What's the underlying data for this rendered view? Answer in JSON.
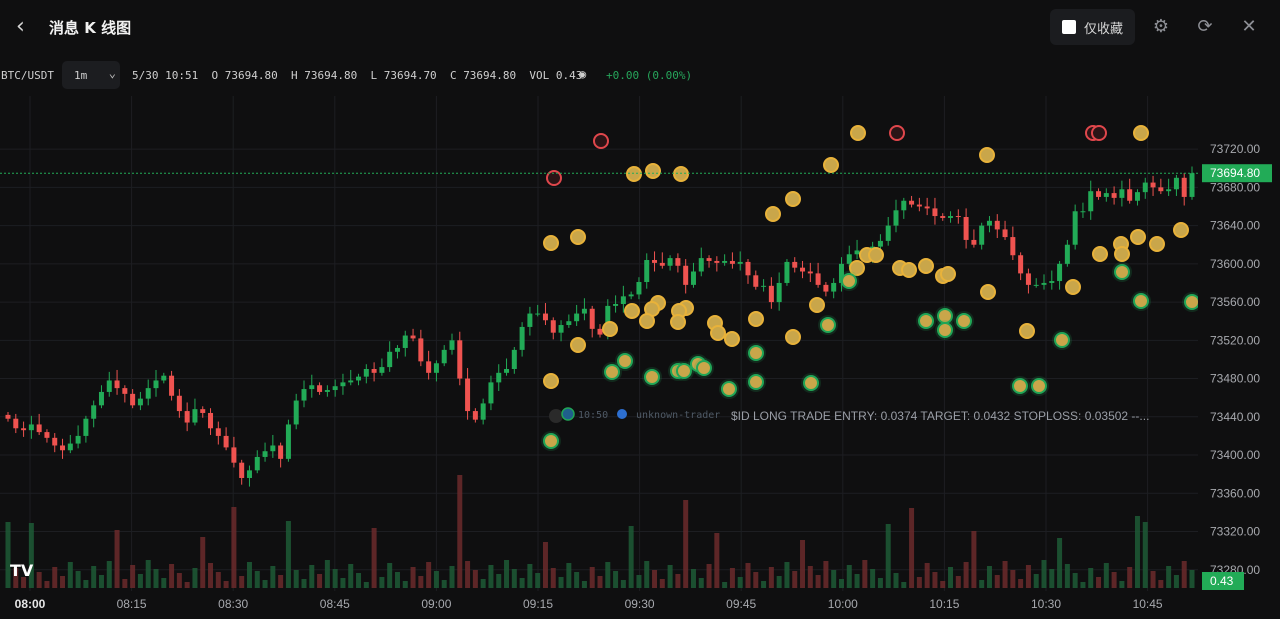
{
  "header": {
    "back_icon": "chevron-left-icon",
    "title": "消息 K 线图",
    "favorites_label": "仅收藏",
    "icons": [
      "gear-icon",
      "refresh-icon",
      "close-icon"
    ]
  },
  "toolbar": {
    "symbol": "BTC/USDT",
    "timeframe": "1m",
    "date_time": "5/30 10:51",
    "open_label": "O",
    "open": "73694.80",
    "high_label": "H",
    "high": "73694.80",
    "low_label": "L",
    "low": "73694.70",
    "close_label": "C",
    "close": "73694.80",
    "vol_label": "VOL",
    "vol": "0.43",
    "change": "+0.00 (0.00%)"
  },
  "annotation": {
    "time": "10:50",
    "user": "unknown-trader",
    "text": "$ID LONG TRADE ENTRY: 0.0374 TARGET: 0.0432 STOPLOSS: 0.03502 --..."
  },
  "logo": "TV",
  "colors": {
    "up": "#22ab57",
    "down": "#ef5350",
    "bg": "#0f0f10",
    "grid": "#1d1e22",
    "marker_gold": "#e8b23a",
    "marker_green": "#21a556",
    "marker_red": "#e0474c"
  },
  "chart_data": {
    "type": "candlestick",
    "symbol": "BTC/USDT",
    "interval": "1m",
    "ylim": [
      73240,
      73740
    ],
    "y_ticks": [
      73720,
      73680,
      73640,
      73600,
      73560,
      73520,
      73480,
      73440,
      73400,
      73360,
      73320,
      73280
    ],
    "y_tick_labels": [
      "73720.00",
      "73680.00",
      "73640.00",
      "73600.00",
      "73560.00",
      "73520.00",
      "73480.00",
      "73440.00",
      "73400.00",
      "73360.00",
      "73320.00",
      "73280.00"
    ],
    "x_ticks": [
      "08:00",
      "08:15",
      "08:30",
      "08:45",
      "09:00",
      "09:15",
      "09:30",
      "09:45",
      "10:00",
      "10:15",
      "10:30",
      "10:45"
    ],
    "last_price_label": "73694.80",
    "last_volume_label": "0.43",
    "grid": true,
    "candles_closes": [
      73438,
      73428,
      73426,
      73432,
      73424,
      73418,
      73410,
      73405,
      73412,
      73420,
      73438,
      73452,
      73466,
      73478,
      73470,
      73464,
      73452,
      73459,
      73470,
      73478,
      73483,
      73462,
      73446,
      73434,
      73448,
      73444,
      73428,
      73420,
      73408,
      73392,
      73376,
      73384,
      73398,
      73404,
      73410,
      73396,
      73432,
      73457,
      73469,
      73473,
      73466,
      73468,
      73472,
      73476,
      73478,
      73482,
      73490,
      73486,
      73492,
      73508,
      73512,
      73525,
      73522,
      73498,
      73486,
      73496,
      73510,
      73520,
      73480,
      73446,
      73437,
      73454,
      73476,
      73486,
      73490,
      73510,
      73534,
      73548,
      73548,
      73541,
      73528,
      73536,
      73540,
      73548,
      73553,
      73532,
      73526,
      73556,
      73558,
      73566,
      73568,
      73581,
      73604,
      73601,
      73598,
      73606,
      73598,
      73578,
      73592,
      73606,
      73603,
      73601,
      73603,
      73600,
      73602,
      73588,
      73576,
      73577,
      73560,
      73580,
      73602,
      73596,
      73592,
      73590,
      73578,
      73571,
      73580,
      73600,
      73610,
      73614,
      73610,
      73618,
      73624,
      73640,
      73656,
      73666,
      73662,
      73660,
      73658,
      73650,
      73648,
      73650,
      73649,
      73625,
      73620,
      73640,
      73645,
      73636,
      73628,
      73609,
      73590,
      73578,
      73578,
      73580,
      73582,
      73600,
      73620,
      73655,
      73655,
      73676,
      73670,
      73674,
      73669,
      73678,
      73666,
      73675,
      73685,
      73680,
      73676,
      73678,
      73690,
      73670,
      73694.8
    ]
  }
}
